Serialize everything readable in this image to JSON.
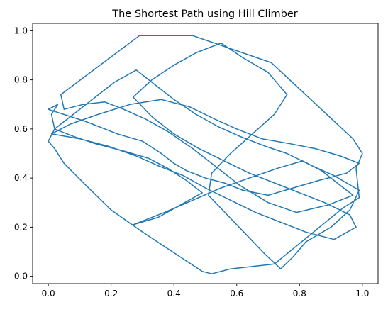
{
  "chart_data": {
    "type": "line",
    "title": "The Shortest Path using Hill Climber",
    "xlabel": "",
    "ylabel": "",
    "xlim": [
      -0.05,
      1.05
    ],
    "ylim": [
      -0.03,
      1.03
    ],
    "x_ticks": [
      "0.0",
      "0.2",
      "0.4",
      "0.6",
      "0.8",
      "1.0"
    ],
    "y_ticks": [
      "0.0",
      "0.2",
      "0.4",
      "0.6",
      "0.8",
      "1.0"
    ],
    "grid": false,
    "legend": "none",
    "series_color": "#1f77b4",
    "series": [
      {
        "x": [
          0.04,
          0.29,
          0.46,
          0.71,
          0.97,
          1.0,
          0.98,
          0.99,
          0.94,
          0.72,
          0.58,
          0.52,
          0.49,
          0.3,
          0.2,
          0.12,
          0.05,
          0.02,
          0.0,
          0.02,
          0.01,
          0.03,
          0.0,
          0.12,
          0.22,
          0.3,
          0.36,
          0.4,
          0.44,
          0.5,
          0.56,
          0.62,
          0.7,
          0.78,
          0.86,
          0.95,
          0.99,
          0.93,
          0.85,
          0.77,
          0.68,
          0.6,
          0.53,
          0.45,
          0.36,
          0.26,
          0.16,
          0.07,
          0.01,
          0.1,
          0.19,
          0.28,
          0.35,
          0.43,
          0.5,
          0.58,
          0.66,
          0.74,
          0.82,
          0.91,
          0.98,
          0.96,
          0.88,
          0.8,
          0.72,
          0.64,
          0.56,
          0.48,
          0.4,
          0.33,
          0.27,
          0.33,
          0.4,
          0.47,
          0.55,
          0.62,
          0.7,
          0.76,
          0.72,
          0.65,
          0.58,
          0.52,
          0.51,
          0.57,
          0.63,
          0.69,
          0.74,
          0.78,
          0.82,
          0.9,
          0.96,
          0.99,
          0.91,
          0.84,
          0.76,
          0.69,
          0.61,
          0.54,
          0.47,
          0.4,
          0.34,
          0.28,
          0.21,
          0.14,
          0.07,
          0.02,
          0.08,
          0.15,
          0.24,
          0.32,
          0.38,
          0.44,
          0.49,
          0.42,
          0.35,
          0.27,
          0.37,
          0.46,
          0.55,
          0.64,
          0.73,
          0.81,
          0.87,
          0.92,
          0.97,
          0.89,
          0.79,
          0.7,
          0.61,
          0.53,
          0.46,
          0.38,
          0.31,
          0.24,
          0.18,
          0.11,
          0.05,
          0.04
        ],
        "y": [
          0.74,
          0.98,
          0.98,
          0.87,
          0.56,
          0.5,
          0.44,
          0.32,
          0.28,
          0.05,
          0.03,
          0.01,
          0.02,
          0.18,
          0.27,
          0.37,
          0.46,
          0.52,
          0.55,
          0.6,
          0.66,
          0.7,
          0.68,
          0.63,
          0.58,
          0.55,
          0.5,
          0.46,
          0.43,
          0.4,
          0.38,
          0.35,
          0.33,
          0.36,
          0.39,
          0.42,
          0.46,
          0.49,
          0.52,
          0.54,
          0.56,
          0.6,
          0.64,
          0.69,
          0.72,
          0.7,
          0.66,
          0.62,
          0.58,
          0.56,
          0.53,
          0.49,
          0.45,
          0.41,
          0.36,
          0.31,
          0.26,
          0.22,
          0.18,
          0.15,
          0.2,
          0.25,
          0.3,
          0.34,
          0.38,
          0.42,
          0.47,
          0.52,
          0.58,
          0.65,
          0.73,
          0.8,
          0.86,
          0.91,
          0.95,
          0.89,
          0.83,
          0.74,
          0.66,
          0.58,
          0.5,
          0.42,
          0.33,
          0.25,
          0.17,
          0.09,
          0.03,
          0.08,
          0.14,
          0.2,
          0.27,
          0.35,
          0.41,
          0.45,
          0.5,
          0.53,
          0.57,
          0.61,
          0.66,
          0.72,
          0.78,
          0.84,
          0.79,
          0.72,
          0.65,
          0.6,
          0.57,
          0.54,
          0.51,
          0.48,
          0.44,
          0.39,
          0.34,
          0.29,
          0.24,
          0.21,
          0.26,
          0.31,
          0.36,
          0.4,
          0.44,
          0.47,
          0.43,
          0.38,
          0.33,
          0.29,
          0.26,
          0.3,
          0.37,
          0.45,
          0.52,
          0.59,
          0.64,
          0.68,
          0.71,
          0.7,
          0.68,
          0.74
        ]
      }
    ]
  }
}
